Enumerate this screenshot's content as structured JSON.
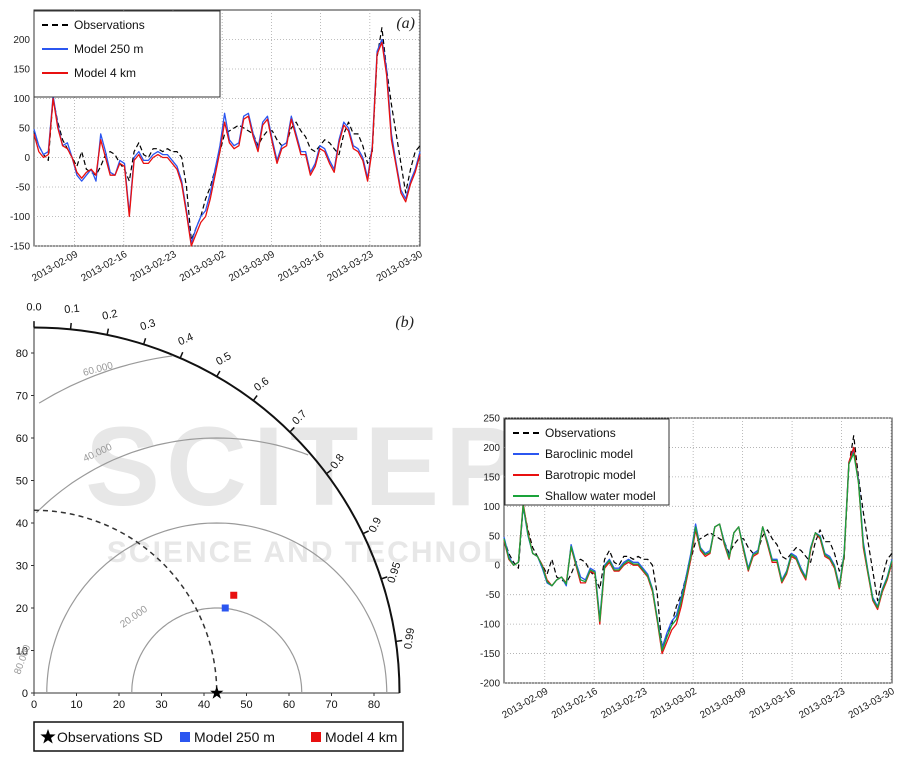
{
  "watermark": {
    "main": "SCITEPRESS",
    "sub": "SCIENCE AND TECHNOLOGY PUBLICATIONS"
  },
  "chart_data": [
    {
      "type": "line",
      "panel_label": "(a)",
      "x_tick_labels": [
        "2013-02-09",
        "2013-02-16",
        "2013-02-23",
        "2013-03-02",
        "2013-03-09",
        "2013-03-16",
        "2013-03-23",
        "2013-03-30"
      ],
      "ylim": [
        -150,
        250
      ],
      "y_ticks": [
        -150,
        -100,
        -50,
        0,
        50,
        100,
        150,
        200
      ],
      "grid": true,
      "legend_position": "top-left",
      "series": [
        {
          "name": "Observations",
          "color": "#000000",
          "dashed": true,
          "values": [
            45,
            20,
            5,
            -5,
            100,
            60,
            30,
            15,
            0,
            -15,
            10,
            -20,
            -25,
            -30,
            -15,
            5,
            10,
            5,
            -10,
            -20,
            -40,
            10,
            25,
            5,
            0,
            15,
            15,
            10,
            15,
            10,
            10,
            0,
            -50,
            -140,
            -120,
            -100,
            -70,
            -50,
            -20,
            10,
            40,
            45,
            50,
            55,
            50,
            45,
            40,
            20,
            35,
            45,
            45,
            30,
            20,
            25,
            50,
            60,
            45,
            35,
            15,
            10,
            20,
            30,
            25,
            15,
            5,
            40,
            60,
            40,
            40,
            20,
            -10,
            10,
            170,
            220,
            150,
            90,
            40,
            -10,
            -60,
            -20,
            10,
            20
          ]
        },
        {
          "name": "Model 250 m",
          "color": "#2b56f0",
          "dashed": false,
          "values": [
            48,
            20,
            5,
            10,
            105,
            55,
            20,
            25,
            0,
            -30,
            -40,
            -30,
            -20,
            -40,
            40,
            10,
            -25,
            -30,
            -5,
            -10,
            -95,
            0,
            10,
            -5,
            -5,
            5,
            10,
            5,
            5,
            -5,
            -15,
            -40,
            -90,
            -145,
            -120,
            -100,
            -90,
            -60,
            -20,
            20,
            75,
            30,
            20,
            25,
            70,
            75,
            40,
            15,
            60,
            70,
            30,
            -5,
            20,
            25,
            70,
            40,
            10,
            10,
            -25,
            -10,
            20,
            15,
            -5,
            -20,
            30,
            60,
            50,
            20,
            15,
            0,
            -35,
            20,
            180,
            200,
            150,
            40,
            -10,
            -55,
            -70,
            -40,
            -20,
            10
          ]
        },
        {
          "name": "Model 4 km",
          "color": "#e81010",
          "dashed": false,
          "values": [
            40,
            10,
            0,
            5,
            100,
            50,
            20,
            15,
            0,
            -25,
            -35,
            -25,
            -20,
            -30,
            30,
            0,
            -30,
            -30,
            -10,
            -15,
            -100,
            -5,
            5,
            -10,
            -10,
            0,
            5,
            0,
            0,
            -10,
            -20,
            -45,
            -95,
            -150,
            -130,
            -110,
            -100,
            -70,
            -30,
            10,
            60,
            25,
            15,
            20,
            65,
            70,
            35,
            10,
            55,
            65,
            25,
            -10,
            15,
            20,
            65,
            35,
            5,
            5,
            -30,
            -15,
            15,
            10,
            -10,
            -25,
            25,
            55,
            45,
            15,
            10,
            -5,
            -40,
            15,
            175,
            195,
            140,
            30,
            -15,
            -60,
            -75,
            -45,
            -25,
            5
          ]
        }
      ]
    },
    {
      "type": "scatter",
      "subtype": "taylor-diagram",
      "panel_label": "(b)",
      "r_ticks": [
        0,
        10,
        20,
        30,
        40,
        50,
        60,
        70,
        80
      ],
      "r_max": 86,
      "correlation_ticks": [
        "0.0",
        "0.1",
        "0.2",
        "0.3",
        "0.4",
        "0.5",
        "0.6",
        "0.7",
        "0.8",
        "0.9",
        "0.95",
        "0.99"
      ],
      "rms_labels": [
        "20.000",
        "40.000",
        "60.000",
        "80.000"
      ],
      "observations_sd": 43,
      "points": [
        {
          "name": "Observations SD",
          "x": 43,
          "y": 0,
          "marker": "star",
          "color": "#000000"
        },
        {
          "name": "Model 250 m",
          "x": 45,
          "y": 20,
          "marker": "square",
          "color": "#2b56f0"
        },
        {
          "name": "Model 4 km",
          "x": 47,
          "y": 23,
          "marker": "square",
          "color": "#e81010"
        }
      ],
      "legend_position": "bottom"
    },
    {
      "type": "line",
      "x_tick_labels": [
        "2013-02-09",
        "2013-02-16",
        "2013-02-23",
        "2013-03-02",
        "2013-03-09",
        "2013-03-16",
        "2013-03-23",
        "2013-03-30"
      ],
      "ylim": [
        -200,
        250
      ],
      "y_ticks": [
        -200,
        -150,
        -100,
        -50,
        0,
        50,
        100,
        150,
        200,
        250
      ],
      "grid": true,
      "legend_position": "top-left",
      "series": [
        {
          "name": "Observations",
          "color": "#000000",
          "dashed": true,
          "values": [
            45,
            20,
            5,
            -5,
            100,
            60,
            30,
            15,
            0,
            -15,
            10,
            -20,
            -25,
            -30,
            -15,
            5,
            10,
            5,
            -10,
            -20,
            -40,
            10,
            25,
            5,
            0,
            15,
            15,
            10,
            15,
            10,
            10,
            0,
            -50,
            -140,
            -120,
            -100,
            -70,
            -50,
            -20,
            10,
            40,
            45,
            50,
            55,
            50,
            45,
            40,
            20,
            35,
            45,
            45,
            30,
            20,
            25,
            50,
            60,
            45,
            35,
            15,
            10,
            20,
            30,
            25,
            15,
            5,
            40,
            60,
            40,
            40,
            20,
            -10,
            10,
            170,
            220,
            150,
            90,
            40,
            -10,
            -60,
            -20,
            10,
            20
          ]
        },
        {
          "name": "Baroclinic model",
          "color": "#2b56f0",
          "dashed": false,
          "values": [
            48,
            15,
            0,
            5,
            100,
            50,
            20,
            15,
            -5,
            -30,
            -35,
            -25,
            -20,
            -35,
            35,
            5,
            -20,
            -25,
            -5,
            -10,
            -90,
            0,
            10,
            -5,
            -5,
            5,
            10,
            5,
            5,
            -5,
            -15,
            -40,
            -90,
            -140,
            -115,
            -95,
            -85,
            -55,
            -20,
            20,
            70,
            30,
            20,
            25,
            65,
            70,
            40,
            15,
            55,
            65,
            30,
            -5,
            20,
            25,
            65,
            40,
            10,
            10,
            -25,
            -10,
            20,
            15,
            -5,
            -20,
            30,
            55,
            50,
            20,
            15,
            0,
            -35,
            20,
            175,
            195,
            145,
            40,
            -10,
            -55,
            -70,
            -40,
            -20,
            10
          ]
        },
        {
          "name": "Barotropic model",
          "color": "#e81010",
          "dashed": false,
          "values": [
            42,
            10,
            0,
            5,
            105,
            55,
            20,
            15,
            0,
            -25,
            -35,
            -25,
            -20,
            -30,
            30,
            0,
            -30,
            -30,
            -10,
            -15,
            -100,
            -5,
            5,
            -10,
            -10,
            0,
            5,
            0,
            0,
            -10,
            -20,
            -45,
            -95,
            -150,
            -130,
            -110,
            -100,
            -70,
            -30,
            10,
            60,
            25,
            15,
            20,
            65,
            70,
            35,
            10,
            55,
            65,
            25,
            -10,
            15,
            20,
            65,
            35,
            5,
            5,
            -30,
            -15,
            15,
            10,
            -10,
            -25,
            25,
            55,
            45,
            15,
            10,
            -5,
            -40,
            15,
            175,
            200,
            140,
            30,
            -15,
            -60,
            -75,
            -45,
            -25,
            5
          ]
        },
        {
          "name": "Shallow water model",
          "color": "#1aa33a",
          "dashed": false,
          "values": [
            45,
            12,
            0,
            5,
            102,
            52,
            20,
            15,
            -2,
            -28,
            -35,
            -25,
            -20,
            -32,
            32,
            2,
            -25,
            -28,
            -8,
            -12,
            -95,
            -2,
            8,
            -8,
            -8,
            2,
            8,
            2,
            2,
            -8,
            -18,
            -42,
            -92,
            -145,
            -122,
            -102,
            -92,
            -62,
            -25,
            15,
            65,
            28,
            18,
            22,
            65,
            70,
            38,
            12,
            55,
            65,
            28,
            -8,
            18,
            22,
            65,
            38,
            8,
            8,
            -28,
            -12,
            18,
            12,
            -8,
            -22,
            28,
            55,
            48,
            18,
            12,
            -2,
            -38,
            18,
            172,
            190,
            140,
            35,
            -12,
            -58,
            -72,
            -42,
            -22,
            8
          ]
        }
      ]
    }
  ]
}
